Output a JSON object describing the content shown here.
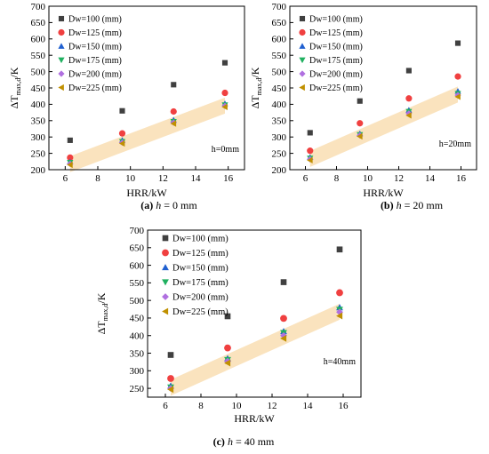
{
  "panels": [
    {
      "caption": {
        "letter": "(a)",
        "h": "h",
        "rest": " = 0 mm"
      },
      "chart_data": {
        "type": "scatter",
        "xlabel": "HRR/kW",
        "ylabel_main": "ΔT",
        "ylabel_sub": "max,d",
        "ylabel_unit": "/K",
        "xlim": [
          5,
          17
        ],
        "ylim": [
          200,
          700
        ],
        "xticks": [
          6,
          8,
          10,
          12,
          14,
          16
        ],
        "yticks": [
          200,
          250,
          300,
          350,
          400,
          450,
          500,
          550,
          600,
          650,
          700
        ],
        "annotation": "h=0mm",
        "legend_position": "top-left",
        "x": [
          6.3,
          9.5,
          12.65,
          15.8
        ],
        "series": [
          {
            "name": "Dw=100 (mm)",
            "marker": "square",
            "color": "#404040",
            "values": [
              290,
              380,
              460,
              527
            ]
          },
          {
            "name": "Dw=125 (mm)",
            "marker": "circle",
            "color": "#f04040",
            "values": [
              237,
              311,
              378,
              435
            ]
          },
          {
            "name": "Dw=150 (mm)",
            "marker": "triangle-up",
            "color": "#2060d0",
            "values": [
              224,
              290,
              352,
              402
            ]
          },
          {
            "name": "Dw=175 (mm)",
            "marker": "triangle-down",
            "color": "#20b060",
            "values": [
              222,
              286,
              347,
              398
            ]
          },
          {
            "name": "Dw=200 (mm)",
            "marker": "diamond",
            "color": "#b070e0",
            "values": [
              218,
              283,
              344,
              395
            ]
          },
          {
            "name": "Dw=225 (mm)",
            "marker": "triangle-left",
            "color": "#c09000",
            "values": [
              215,
              280,
              341,
              392
            ]
          }
        ],
        "band": {
          "color": "#f8d9a8",
          "x": [
            6.3,
            15.8
          ],
          "y": [
            217,
            396
          ]
        }
      }
    },
    {
      "caption": {
        "letter": "(b)",
        "h": "h",
        "rest": " = 20 mm"
      },
      "chart_data": {
        "type": "scatter",
        "xlabel": "HRR/kW",
        "ylabel_main": "ΔT",
        "ylabel_sub": "max,d",
        "ylabel_unit": "/K",
        "xlim": [
          5,
          17
        ],
        "ylim": [
          200,
          700
        ],
        "xticks": [
          6,
          8,
          10,
          12,
          14,
          16
        ],
        "yticks": [
          200,
          250,
          300,
          350,
          400,
          450,
          500,
          550,
          600,
          650,
          700
        ],
        "annotation": "h=20mm",
        "legend_position": "top-left",
        "x": [
          6.3,
          9.5,
          12.65,
          15.8
        ],
        "series": [
          {
            "name": "Dw=100 (mm)",
            "marker": "square",
            "color": "#404040",
            "values": [
              313,
              410,
              503,
              587
            ]
          },
          {
            "name": "Dw=125 (mm)",
            "marker": "circle",
            "color": "#f04040",
            "values": [
              258,
              342,
              418,
              485
            ]
          },
          {
            "name": "Dw=150 (mm)",
            "marker": "triangle-up",
            "color": "#2060d0",
            "values": [
              238,
              310,
              382,
              440
            ]
          },
          {
            "name": "Dw=175 (mm)",
            "marker": "triangle-down",
            "color": "#20b060",
            "values": [
              235,
              307,
              378,
              433
            ]
          },
          {
            "name": "Dw=200 (mm)",
            "marker": "diamond",
            "color": "#b070e0",
            "values": [
              232,
              305,
              372,
              428
            ]
          },
          {
            "name": "Dw=225 (mm)",
            "marker": "triangle-left",
            "color": "#c09000",
            "values": [
              229,
              302,
              366,
              423
            ]
          }
        ],
        "band": {
          "color": "#f8d9a8",
          "x": [
            6.3,
            15.8
          ],
          "y": [
            233,
            430
          ]
        }
      }
    },
    {
      "caption": {
        "letter": "(c)",
        "h": "h",
        "rest": " = 40 mm"
      },
      "chart_data": {
        "type": "scatter",
        "xlabel": "HRR/kW",
        "ylabel_main": "ΔT",
        "ylabel_sub": "max,d",
        "ylabel_unit": "/K",
        "xlim": [
          5,
          17
        ],
        "ylim": [
          225,
          700
        ],
        "xticks": [
          6,
          8,
          10,
          12,
          14,
          16
        ],
        "yticks": [
          250,
          300,
          350,
          400,
          450,
          500,
          550,
          600,
          650,
          700
        ],
        "annotation": "h=40mm",
        "legend_position": "top-left",
        "x": [
          6.3,
          9.5,
          12.65,
          15.8
        ],
        "series": [
          {
            "name": "Dw=100 (mm)",
            "marker": "square",
            "color": "#404040",
            "values": [
              345,
              455,
              552,
              645
            ]
          },
          {
            "name": "Dw=125 (mm)",
            "marker": "circle",
            "color": "#f04040",
            "values": [
              278,
              365,
              449,
              522
            ]
          },
          {
            "name": "Dw=150 (mm)",
            "marker": "triangle-up",
            "color": "#2060d0",
            "values": [
              257,
              335,
              412,
              480
            ]
          },
          {
            "name": "Dw=175 (mm)",
            "marker": "triangle-down",
            "color": "#20b060",
            "values": [
              253,
              331,
              408,
              474
            ]
          },
          {
            "name": "Dw=200 (mm)",
            "marker": "diamond",
            "color": "#b070e0",
            "values": [
              250,
              327,
              400,
              467
            ]
          },
          {
            "name": "Dw=225 (mm)",
            "marker": "triangle-left",
            "color": "#c09000",
            "values": [
              247,
              322,
              392,
              456
            ]
          }
        ],
        "band": {
          "color": "#f8d9a8",
          "x": [
            6.3,
            15.8
          ],
          "y": [
            252,
            468
          ]
        }
      }
    }
  ]
}
